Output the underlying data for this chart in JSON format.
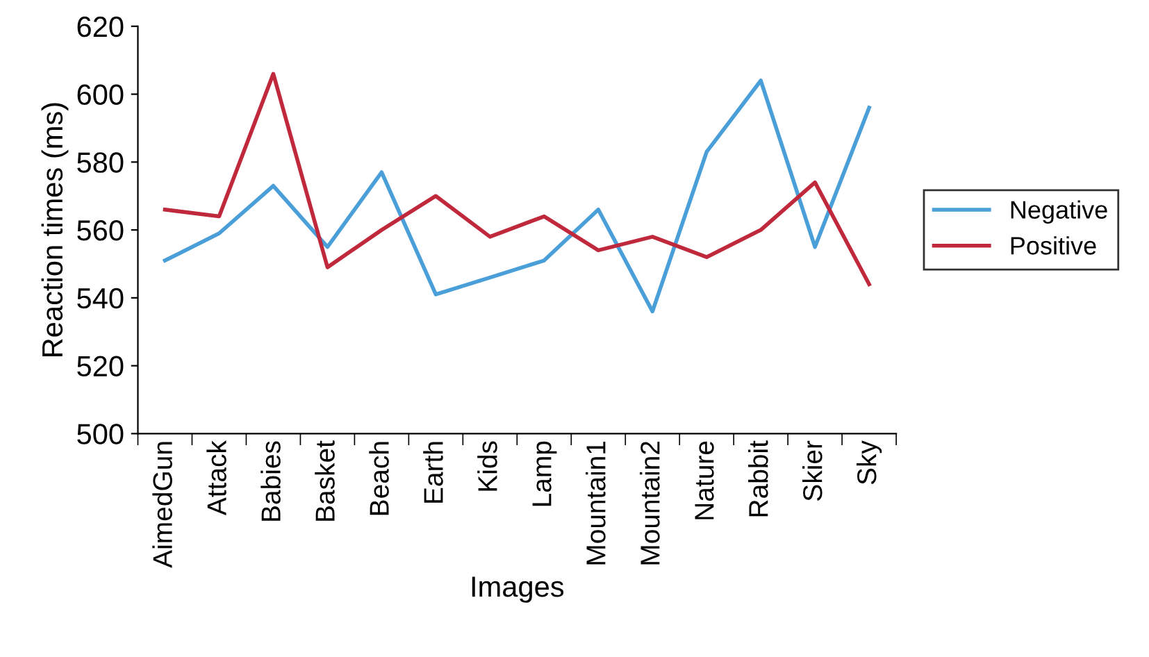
{
  "chart_data": {
    "type": "line",
    "xlabel": "Images",
    "ylabel": "Reaction times (ms)",
    "categories": [
      "AimedGun",
      "Attack",
      "Babies",
      "Basket",
      "Beach",
      "Earth",
      "Kids",
      "Lamp",
      "Mountain1",
      "Mountain2",
      "Nature",
      "Rabbit",
      "Skier",
      "Sky"
    ],
    "series": [
      {
        "name": "Negative",
        "color": "#4a9fd8",
        "values": [
          551,
          559,
          573,
          555,
          577,
          541,
          546,
          551,
          566,
          536,
          583,
          604,
          555,
          596
        ]
      },
      {
        "name": "Positive",
        "color": "#c0283c",
        "values": [
          566,
          564,
          606,
          549,
          560,
          570,
          558,
          564,
          554,
          558,
          552,
          560,
          574,
          544
        ]
      }
    ],
    "ylim": [
      500,
      620
    ],
    "yticks": [
      500,
      520,
      540,
      560,
      580,
      600,
      620
    ],
    "grid": false,
    "legend": "right",
    "marker": "none",
    "line_style": "solid"
  }
}
